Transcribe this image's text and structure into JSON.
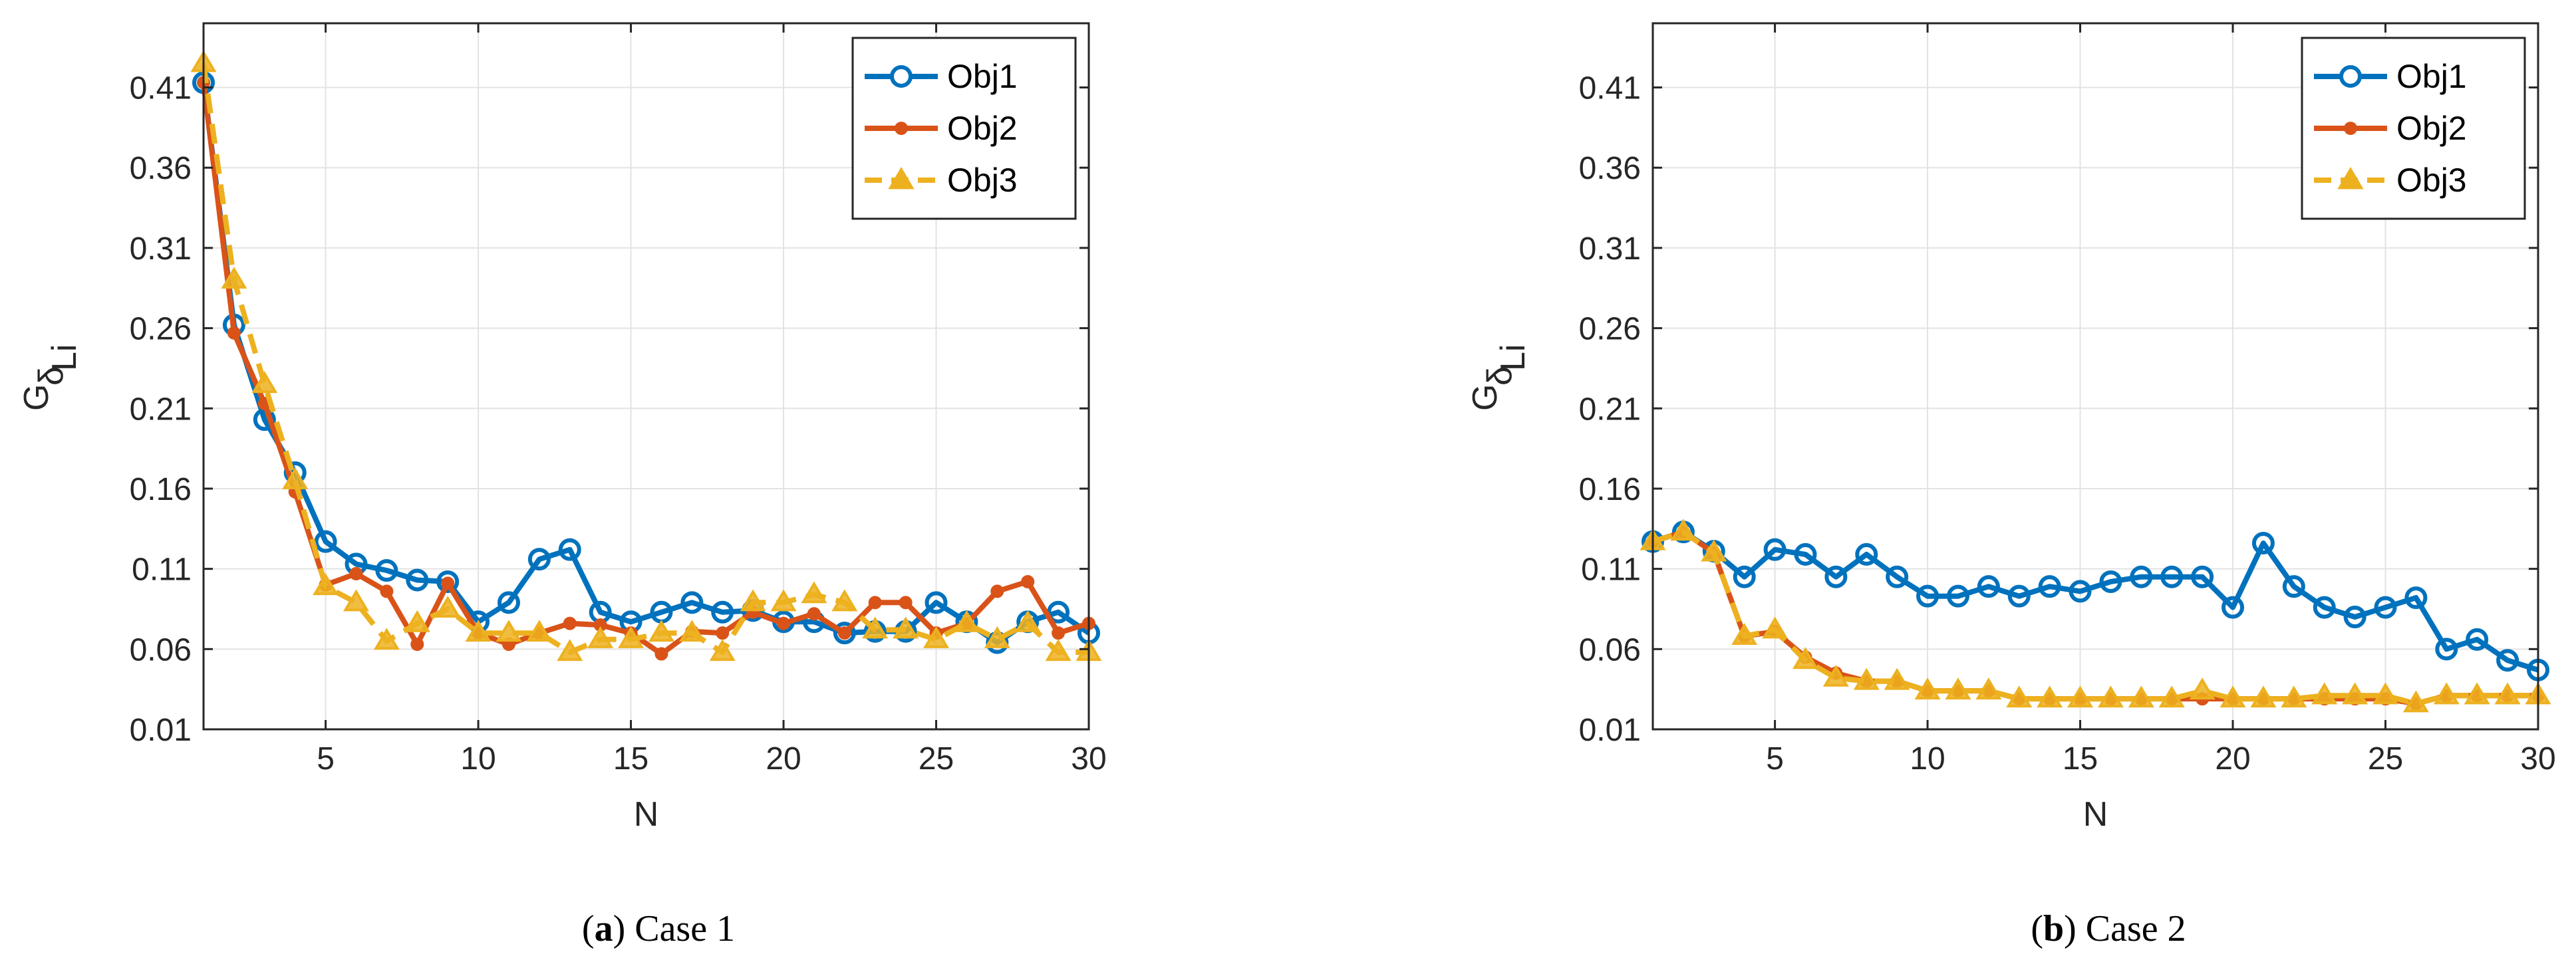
{
  "chart_data": [
    {
      "type": "line",
      "panel": "a",
      "caption_letter": "a",
      "caption_title": "Case 1",
      "xlabel": "N",
      "ylabel_main": "G",
      "ylabel_sub": "δ",
      "ylabel_subsub": "Li",
      "xlim": [
        1,
        30
      ],
      "ylim": [
        0.01,
        0.45
      ],
      "xticks": [
        5,
        10,
        15,
        20,
        25,
        30
      ],
      "yticks": [
        0.01,
        0.06,
        0.11,
        0.16,
        0.21,
        0.26,
        0.31,
        0.36,
        0.41
      ],
      "ytick_labels": [
        "0.01",
        "0.06",
        "0.11",
        "0.16",
        "0.21",
        "0.26",
        "0.31",
        "0.36",
        "0.41"
      ],
      "grid": true,
      "legend_position": "top-right",
      "x": [
        1,
        2,
        3,
        4,
        5,
        6,
        7,
        8,
        9,
        10,
        11,
        12,
        13,
        14,
        15,
        16,
        17,
        18,
        19,
        20,
        21,
        22,
        23,
        24,
        25,
        26,
        27,
        28,
        29,
        30
      ],
      "series": [
        {
          "name": "Obj1",
          "color": "#0072BD",
          "marker": "circle",
          "dashed": false,
          "values": [
            0.413,
            0.262,
            0.203,
            0.17,
            0.127,
            0.113,
            0.109,
            0.103,
            0.102,
            0.077,
            0.089,
            0.116,
            0.122,
            0.083,
            0.077,
            0.083,
            0.089,
            0.083,
            0.084,
            0.077,
            0.077,
            0.07,
            0.071,
            0.071,
            0.089,
            0.077,
            0.064,
            0.077,
            0.083,
            0.07
          ]
        },
        {
          "name": "Obj2",
          "color": "#D95319",
          "marker": "dot",
          "dashed": false,
          "values": [
            0.413,
            0.257,
            0.213,
            0.158,
            0.1,
            0.107,
            0.096,
            0.063,
            0.101,
            0.07,
            0.063,
            0.07,
            0.076,
            0.075,
            0.07,
            0.057,
            0.071,
            0.07,
            0.083,
            0.076,
            0.082,
            0.07,
            0.089,
            0.089,
            0.07,
            0.076,
            0.096,
            0.102,
            0.07,
            0.076
          ]
        },
        {
          "name": "Obj3",
          "color": "#EDB120",
          "marker": "triangle",
          "dashed": true,
          "values": [
            0.425,
            0.29,
            0.225,
            0.165,
            0.099,
            0.089,
            0.065,
            0.076,
            0.085,
            0.07,
            0.07,
            0.07,
            0.058,
            0.066,
            0.066,
            0.07,
            0.07,
            0.058,
            0.089,
            0.089,
            0.094,
            0.089,
            0.072,
            0.072,
            0.066,
            0.076,
            0.066,
            0.076,
            0.058,
            0.058
          ]
        }
      ]
    },
    {
      "type": "line",
      "panel": "b",
      "caption_letter": "b",
      "caption_title": "Case 2",
      "xlabel": "N",
      "ylabel_main": "G",
      "ylabel_sub": "δ",
      "ylabel_subsub": "Li",
      "xlim": [
        1,
        30
      ],
      "ylim": [
        0.01,
        0.45
      ],
      "xticks": [
        5,
        10,
        15,
        20,
        25,
        30
      ],
      "yticks": [
        0.01,
        0.06,
        0.11,
        0.16,
        0.21,
        0.26,
        0.31,
        0.36,
        0.41
      ],
      "ytick_labels": [
        "0.01",
        "0.06",
        "0.11",
        "0.16",
        "0.21",
        "0.26",
        "0.31",
        "0.36",
        "0.41"
      ],
      "grid": true,
      "legend_position": "top-right",
      "x": [
        1,
        2,
        3,
        4,
        5,
        6,
        7,
        8,
        9,
        10,
        11,
        12,
        13,
        14,
        15,
        16,
        17,
        18,
        19,
        20,
        21,
        22,
        23,
        24,
        25,
        26,
        27,
        28,
        29,
        30
      ],
      "series": [
        {
          "name": "Obj1",
          "color": "#0072BD",
          "marker": "circle",
          "dashed": false,
          "values": [
            0.127,
            0.133,
            0.121,
            0.105,
            0.122,
            0.119,
            0.105,
            0.119,
            0.105,
            0.093,
            0.093,
            0.099,
            0.093,
            0.099,
            0.096,
            0.102,
            0.105,
            0.105,
            0.105,
            0.086,
            0.126,
            0.099,
            0.086,
            0.08,
            0.086,
            0.092,
            0.06,
            0.066,
            0.053,
            0.047
          ]
        },
        {
          "name": "Obj2",
          "color": "#D95319",
          "marker": "dot",
          "dashed": false,
          "values": [
            0.127,
            0.133,
            0.12,
            0.068,
            0.071,
            0.055,
            0.045,
            0.04,
            0.04,
            0.034,
            0.034,
            0.034,
            0.029,
            0.029,
            0.029,
            0.029,
            0.029,
            0.029,
            0.029,
            0.029,
            0.029,
            0.029,
            0.029,
            0.029,
            0.029,
            0.026,
            0.031,
            0.031,
            0.031,
            0.031
          ]
        },
        {
          "name": "Obj3",
          "color": "#EDB120",
          "marker": "triangle",
          "dashed": true,
          "values": [
            0.127,
            0.133,
            0.12,
            0.068,
            0.072,
            0.053,
            0.042,
            0.04,
            0.04,
            0.034,
            0.034,
            0.034,
            0.029,
            0.029,
            0.029,
            0.029,
            0.029,
            0.029,
            0.034,
            0.029,
            0.029,
            0.029,
            0.031,
            0.031,
            0.031,
            0.026,
            0.031,
            0.031,
            0.031,
            0.031
          ]
        }
      ]
    }
  ]
}
